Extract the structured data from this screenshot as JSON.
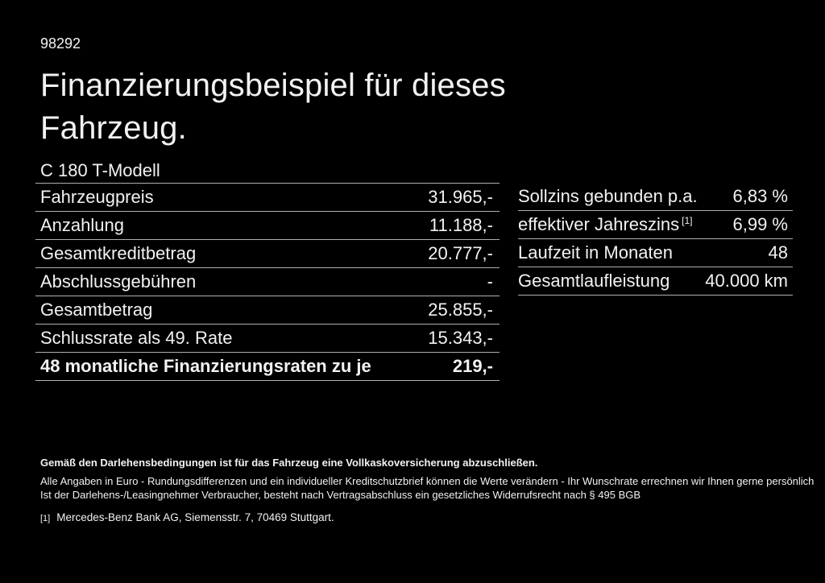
{
  "page": {
    "doc_number": "98292",
    "title": "Finanzierungsbeispiel für dieses Fahrzeug.",
    "model": "C 180 T-Modell"
  },
  "left_table": {
    "rows": [
      {
        "label": "Fahrzeugpreis",
        "value": "31.965,-"
      },
      {
        "label": "Anzahlung",
        "value": "11.188,-"
      },
      {
        "label": "Gesamtkreditbetrag",
        "value": "20.777,-"
      },
      {
        "label": "Abschlussgebühren",
        "value": "-"
      },
      {
        "label": "Gesamtbetrag",
        "value": "25.855,-"
      },
      {
        "label": "Schlussrate als 49. Rate",
        "value": "15.343,-"
      },
      {
        "label": "48 monatliche Finanzierungsraten zu je",
        "value": "219,-"
      }
    ]
  },
  "right_table": {
    "rows": [
      {
        "label": "Sollzins gebunden p.a.",
        "value": "6,83 %"
      },
      {
        "label": "effektiver Jahreszins",
        "sup": "[1]",
        "value": "6,99 %"
      },
      {
        "label": "Laufzeit in Monaten",
        "value": "48"
      },
      {
        "label": "Gesamtlaufleistung",
        "value": "40.000 km"
      }
    ]
  },
  "footer": {
    "insurance_note": "Gemäß den Darlehensbedingungen ist für das Fahrzeug eine Vollkaskoversicherung abzuschließen.",
    "disclaimer_line1": "Alle Angaben in Euro - Rundungsdifferenzen und ein individueller Kreditschutzbrief können die Werte verändern - Ihr Wunschrate errechnen wir Ihnen gerne persönlich",
    "disclaimer_line2": "Ist der Darlehens-/Leasingnehmer Verbraucher, besteht nach Vertragsabschluss ein gesetzliches Widerrufsrecht nach § 495 BGB",
    "footnote_marker": "[1]",
    "footnote_text": "Mercedes-Benz Bank AG, Siemensstr. 7, 70469 Stuttgart."
  },
  "colors": {
    "background": "#000000",
    "text": "#f2f2f2",
    "divider": "#b0b0b0"
  }
}
